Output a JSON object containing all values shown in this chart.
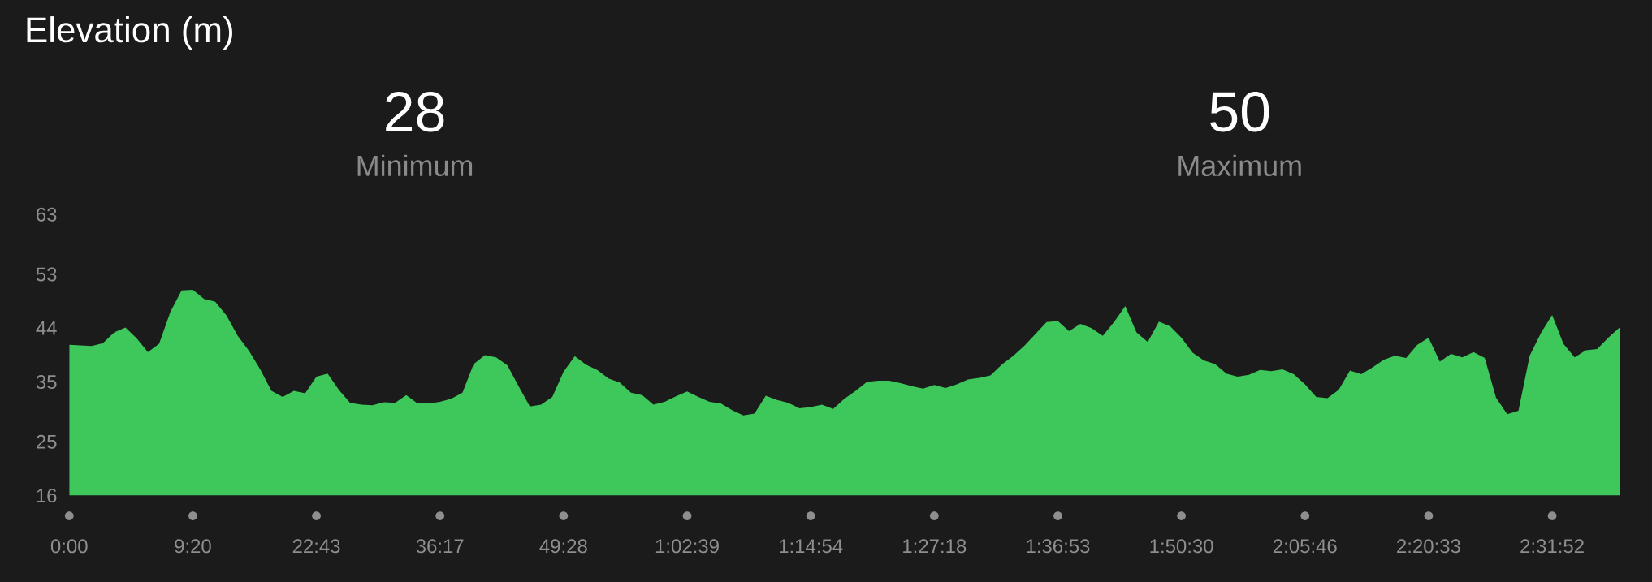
{
  "chart_data": {
    "type": "area",
    "title": "Elevation (m)",
    "annotations": [
      "28",
      "Minimum",
      "50",
      "Maximum"
    ],
    "categories": [
      "0:00",
      null,
      null,
      null,
      null,
      null,
      null,
      null,
      null,
      null,
      null,
      "9:20",
      null,
      null,
      null,
      null,
      null,
      null,
      null,
      null,
      null,
      null,
      "22:43",
      null,
      null,
      null,
      null,
      null,
      null,
      null,
      null,
      null,
      null,
      "36:17",
      null,
      null,
      null,
      null,
      null,
      null,
      null,
      null,
      null,
      null,
      "49:28",
      null,
      null,
      null,
      null,
      null,
      null,
      null,
      null,
      null,
      null,
      "1:02:39",
      null,
      null,
      null,
      null,
      null,
      null,
      null,
      null,
      null,
      null,
      "1:14:54",
      null,
      null,
      null,
      null,
      null,
      null,
      null,
      null,
      null,
      null,
      "1:27:18",
      null,
      null,
      null,
      null,
      null,
      null,
      null,
      null,
      null,
      null,
      "1:36:53",
      null,
      null,
      null,
      null,
      null,
      null,
      null,
      null,
      null,
      null,
      "1:50:30",
      null,
      null,
      null,
      null,
      null,
      null,
      null,
      null,
      null,
      null,
      "2:05:46",
      null,
      null,
      null,
      null,
      null,
      null,
      null,
      null,
      null,
      null,
      "2:20:33",
      null,
      null,
      null,
      null,
      null,
      null,
      null,
      null,
      null,
      null,
      "2:31:52",
      null,
      null,
      null,
      null,
      null,
      null
    ],
    "values": [
      41.2,
      41.1,
      41.0,
      41.5,
      43.3,
      44.1,
      42.3,
      40.0,
      41.4,
      46.7,
      50.3,
      50.4,
      48.9,
      48.4,
      46.1,
      42.7,
      40.2,
      37.1,
      33.5,
      32.5,
      33.5,
      33.1,
      35.9,
      36.4,
      33.7,
      31.5,
      31.2,
      31.1,
      31.6,
      31.5,
      32.8,
      31.4,
      31.4,
      31.7,
      32.2,
      33.2,
      38.0,
      39.5,
      39.1,
      37.8,
      34.3,
      30.9,
      31.2,
      32.5,
      36.7,
      39.3,
      37.9,
      37.0,
      35.6,
      34.9,
      33.2,
      32.8,
      31.2,
      31.7,
      32.6,
      33.4,
      32.5,
      31.7,
      31.4,
      30.3,
      29.4,
      29.7,
      32.7,
      32.0,
      31.5,
      30.6,
      30.8,
      31.2,
      30.5,
      32.2,
      33.5,
      35.0,
      35.2,
      35.2,
      34.8,
      34.3,
      33.9,
      34.5,
      34.0,
      34.6,
      35.4,
      35.7,
      36.1,
      37.9,
      39.3,
      41.0,
      43.0,
      45.0,
      45.2,
      43.5,
      44.7,
      44.0,
      42.7,
      45.0,
      47.7,
      43.3,
      41.7,
      45.1,
      44.3,
      42.4,
      39.9,
      38.6,
      38.0,
      36.4,
      35.9,
      36.2,
      37.0,
      36.8,
      37.1,
      36.3,
      34.6,
      32.5,
      32.3,
      33.7,
      36.9,
      36.3,
      37.4,
      38.7,
      39.4,
      39.0,
      41.2,
      42.4,
      38.4,
      39.7,
      39.1,
      40.0,
      39.0,
      32.4,
      29.6,
      30.2,
      39.4,
      43.2,
      46.2,
      41.4,
      39.1,
      40.3,
      40.5,
      42.4,
      44.1
    ],
    "color": "#3ec75a",
    "ylim": [
      16,
      63
    ],
    "yticks": [
      16,
      25,
      35,
      44,
      53,
      63
    ]
  }
}
